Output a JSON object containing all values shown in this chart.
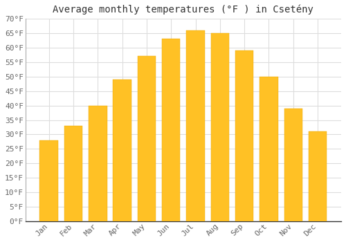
{
  "title": "Average monthly temperatures (°F ) in Csetény",
  "months": [
    "Jan",
    "Feb",
    "Mar",
    "Apr",
    "May",
    "Jun",
    "Jul",
    "Aug",
    "Sep",
    "Oct",
    "Nov",
    "Dec"
  ],
  "values": [
    28,
    33,
    40,
    49,
    57,
    63,
    66,
    65,
    59,
    50,
    39,
    31
  ],
  "bar_color_top": "#FFC125",
  "bar_color_bottom": "#FFD966",
  "bar_edge_color": "#E8A800",
  "background_color": "#FFFFFF",
  "grid_color": "#DDDDDD",
  "ylim": [
    0,
    70
  ],
  "ytick_step": 5,
  "title_fontsize": 10,
  "tick_fontsize": 8,
  "tick_label_color": "#666666",
  "bar_width": 0.75
}
